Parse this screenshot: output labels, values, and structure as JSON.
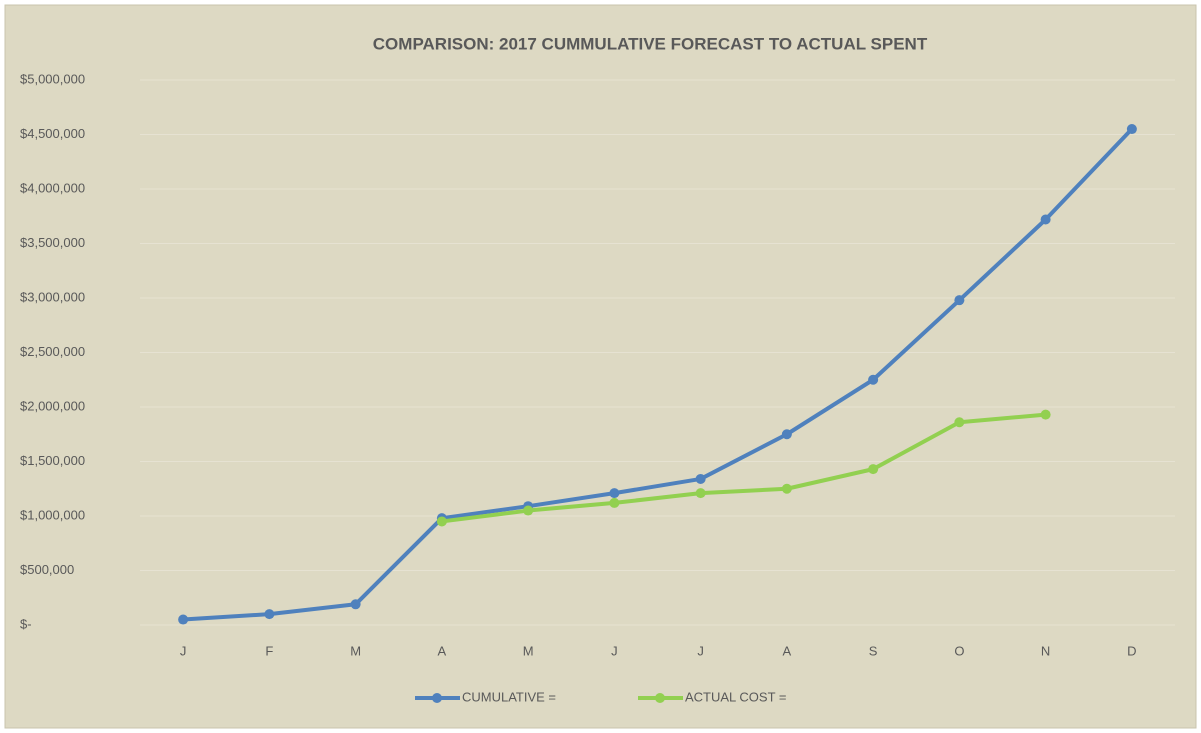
{
  "chart_data": {
    "type": "line",
    "title": "COMPARISON: 2017 CUMMULATIVE FORECAST TO ACTUAL SPENT",
    "categories": [
      "J",
      "F",
      "M",
      "A",
      "M",
      "J",
      "J",
      "A",
      "S",
      "O",
      "N",
      "D"
    ],
    "series": [
      {
        "name": "CUMULATIVE =",
        "color": "#4f81bd",
        "values": [
          50000,
          100000,
          190000,
          980000,
          1090000,
          1210000,
          1340000,
          1750000,
          2250000,
          2980000,
          3720000,
          4550000
        ]
      },
      {
        "name": "ACTUAL COST =",
        "color": "#92d050",
        "values": [
          null,
          null,
          null,
          950000,
          1050000,
          1120000,
          1210000,
          1250000,
          1430000,
          1860000,
          1930000,
          null
        ]
      }
    ],
    "ylim": [
      0,
      5000000
    ],
    "yticks": [
      {
        "value": 0,
        "label": "$-"
      },
      {
        "value": 500000,
        "label": "$500,000"
      },
      {
        "value": 1000000,
        "label": "$1,000,000"
      },
      {
        "value": 1500000,
        "label": "$1,500,000"
      },
      {
        "value": 2000000,
        "label": "$2,000,000"
      },
      {
        "value": 2500000,
        "label": "$2,500,000"
      },
      {
        "value": 3000000,
        "label": "$3,000,000"
      },
      {
        "value": 3500000,
        "label": "$3,500,000"
      },
      {
        "value": 4000000,
        "label": "$4,000,000"
      },
      {
        "value": 4500000,
        "label": "$4,500,000"
      },
      {
        "value": 5000000,
        "label": "$5,000,000"
      }
    ],
    "grid": true,
    "legend": "bottom"
  }
}
